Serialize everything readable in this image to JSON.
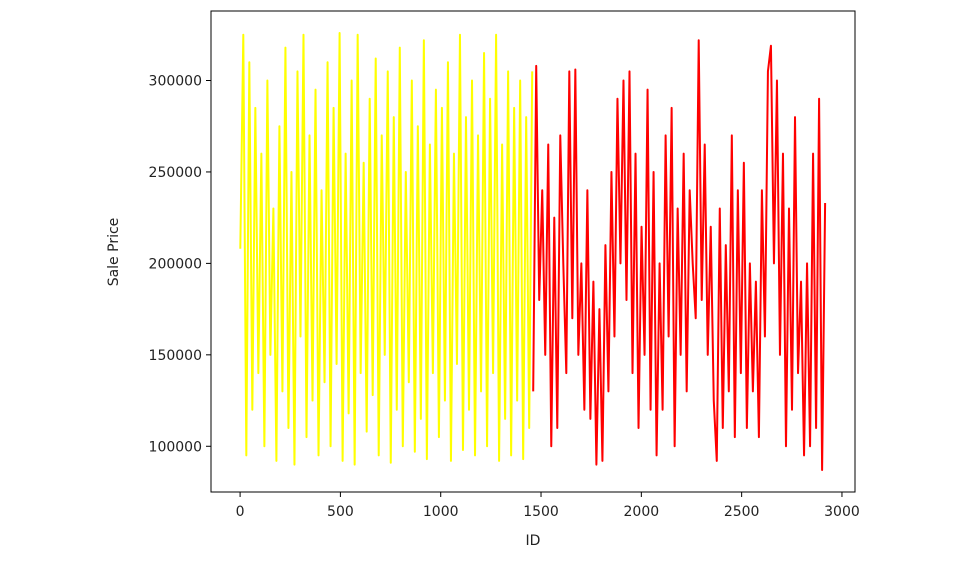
{
  "chart_data": {
    "type": "line",
    "xlabel": "ID",
    "ylabel": "Sale Price",
    "xlim": [
      -145,
      3065
    ],
    "ylim": [
      75000,
      338000
    ],
    "xticks": [
      0,
      500,
      1000,
      1500,
      2000,
      2500,
      3000
    ],
    "yticks": [
      100000,
      150000,
      200000,
      250000,
      300000
    ],
    "series": [
      {
        "color": "#ffff00",
        "x": [
          1,
          16,
          31,
          46,
          61,
          76,
          91,
          106,
          121,
          136,
          151,
          166,
          181,
          196,
          211,
          226,
          241,
          256,
          271,
          286,
          301,
          316,
          331,
          346,
          361,
          376,
          391,
          406,
          421,
          436,
          451,
          466,
          481,
          496,
          511,
          526,
          541,
          556,
          571,
          586,
          601,
          616,
          631,
          646,
          661,
          676,
          691,
          706,
          721,
          736,
          751,
          766,
          781,
          796,
          811,
          826,
          841,
          856,
          871,
          886,
          901,
          916,
          931,
          946,
          961,
          976,
          991,
          1006,
          1021,
          1036,
          1051,
          1066,
          1081,
          1096,
          1111,
          1126,
          1141,
          1156,
          1171,
          1186,
          1201,
          1216,
          1231,
          1246,
          1261,
          1276,
          1291,
          1306,
          1321,
          1336,
          1351,
          1366,
          1381,
          1396,
          1411,
          1426,
          1441,
          1456
        ],
        "values": [
          208000,
          325000,
          95000,
          310000,
          120000,
          285000,
          140000,
          260000,
          100000,
          300000,
          150000,
          230000,
          92000,
          275000,
          130000,
          318000,
          110000,
          250000,
          90000,
          305000,
          160000,
          325000,
          105000,
          270000,
          125000,
          295000,
          95000,
          240000,
          135000,
          310000,
          100000,
          285000,
          145000,
          326000,
          92000,
          260000,
          118000,
          300000,
          90000,
          325000,
          140000,
          255000,
          108000,
          290000,
          128000,
          312000,
          95000,
          270000,
          150000,
          305000,
          91000,
          280000,
          120000,
          318000,
          100000,
          250000,
          135000,
          300000,
          97000,
          275000,
          115000,
          322000,
          93000,
          265000,
          140000,
          295000,
          105000,
          285000,
          125000,
          310000,
          92000,
          260000,
          145000,
          325000,
          98000,
          280000,
          120000,
          300000,
          95000,
          270000,
          130000,
          315000,
          100000,
          290000,
          140000,
          325000,
          92000,
          265000,
          115000,
          305000,
          95000,
          285000,
          125000,
          300000,
          93000,
          280000,
          110000,
          305000
        ]
      },
      {
        "color": "#ff0000",
        "x": [
          1461,
          1476,
          1491,
          1506,
          1521,
          1536,
          1551,
          1566,
          1581,
          1596,
          1611,
          1626,
          1641,
          1656,
          1671,
          1686,
          1701,
          1716,
          1731,
          1746,
          1761,
          1776,
          1791,
          1806,
          1821,
          1836,
          1851,
          1866,
          1881,
          1896,
          1911,
          1926,
          1941,
          1956,
          1971,
          1986,
          2001,
          2016,
          2031,
          2046,
          2061,
          2076,
          2091,
          2106,
          2121,
          2136,
          2151,
          2166,
          2181,
          2196,
          2211,
          2226,
          2241,
          2256,
          2271,
          2286,
          2301,
          2316,
          2331,
          2346,
          2361,
          2376,
          2391,
          2406,
          2421,
          2436,
          2451,
          2466,
          2481,
          2496,
          2511,
          2526,
          2541,
          2556,
          2571,
          2586,
          2601,
          2616,
          2631,
          2646,
          2661,
          2676,
          2691,
          2706,
          2721,
          2736,
          2751,
          2766,
          2781,
          2796,
          2811,
          2826,
          2841,
          2856,
          2871,
          2886,
          2901,
          2916
        ],
        "values": [
          130000,
          308000,
          180000,
          240000,
          150000,
          265000,
          100000,
          225000,
          110000,
          270000,
          200000,
          140000,
          305000,
          170000,
          306000,
          150000,
          200000,
          120000,
          240000,
          115000,
          190000,
          90000,
          175000,
          92000,
          210000,
          130000,
          250000,
          160000,
          290000,
          200000,
          300000,
          180000,
          305000,
          140000,
          260000,
          110000,
          220000,
          150000,
          295000,
          120000,
          250000,
          95000,
          200000,
          120000,
          270000,
          160000,
          285000,
          100000,
          230000,
          150000,
          260000,
          130000,
          240000,
          200000,
          170000,
          322000,
          180000,
          265000,
          150000,
          220000,
          125000,
          92000,
          230000,
          110000,
          210000,
          130000,
          270000,
          105000,
          240000,
          140000,
          255000,
          110000,
          200000,
          130000,
          190000,
          105000,
          240000,
          160000,
          305000,
          319000,
          200000,
          300000,
          150000,
          260000,
          100000,
          230000,
          120000,
          280000,
          140000,
          190000,
          95000,
          200000,
          100000,
          260000,
          110000,
          290000,
          87000,
          233000
        ]
      }
    ]
  }
}
